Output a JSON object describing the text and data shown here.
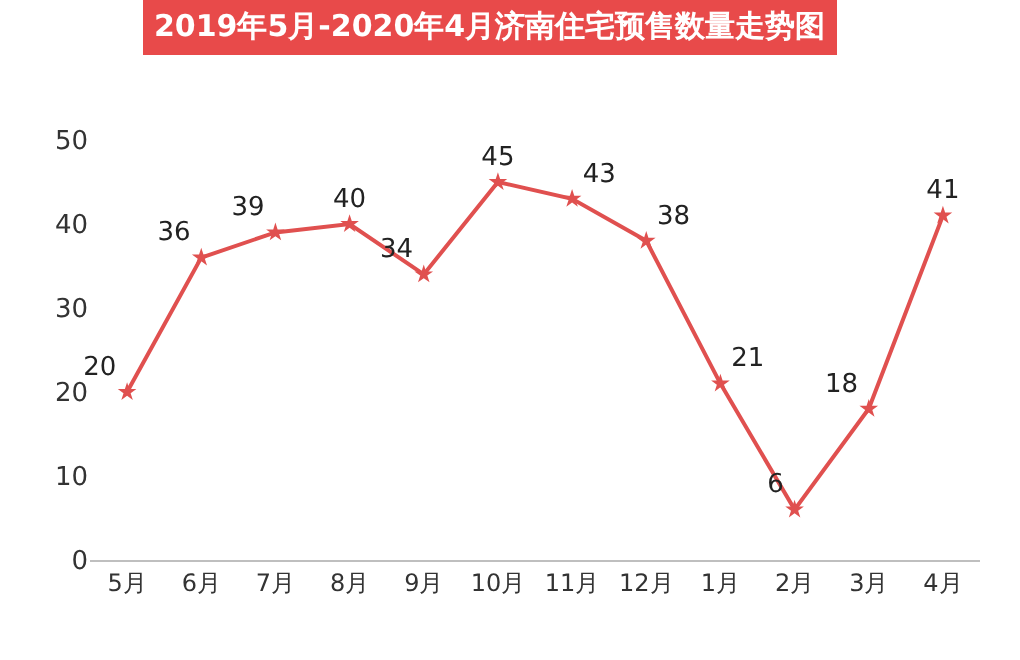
{
  "chart_data": {
    "type": "line",
    "title": "2019年5月-2020年4月济南住宅预售数量走势图",
    "categories": [
      "5月",
      "6月",
      "7月",
      "8月",
      "9月",
      "10月",
      "11月",
      "12月",
      "1月",
      "2月",
      "3月",
      "4月"
    ],
    "values": [
      20,
      36,
      39,
      40,
      34,
      45,
      43,
      38,
      21,
      6,
      18,
      41
    ],
    "color": "#e0504f",
    "ylim": [
      0,
      50
    ],
    "yticks": [
      0,
      10,
      20,
      30,
      40,
      50
    ],
    "legend": false,
    "marker": "star",
    "line_style": "solid",
    "data_labels": true
  }
}
